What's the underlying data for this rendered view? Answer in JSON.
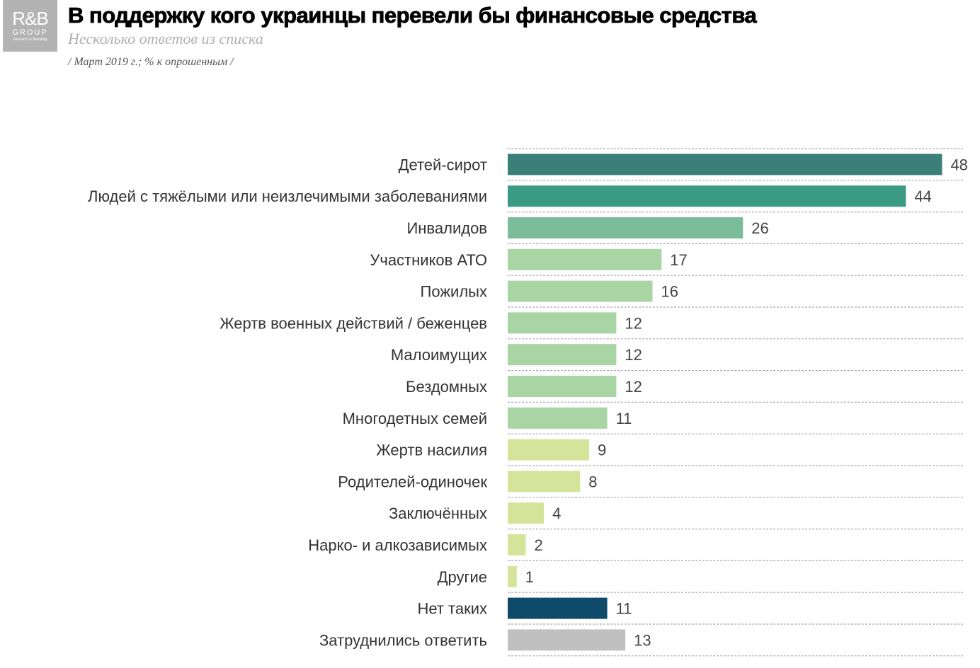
{
  "logo": {
    "line1": "R&B",
    "line2": "GROUP",
    "line3": "Research & Branding"
  },
  "header": {
    "title": "В поддержку кого украинцы перевели бы финансовые средства",
    "subtitle": "Несколько ответов из списка",
    "note": "/ Март 2019 г.; % к опрошенным /"
  },
  "chart_data": {
    "type": "bar",
    "orientation": "horizontal",
    "title": "В поддержку кого украинцы перевели бы финансовые средства",
    "subtitle": "Несколько ответов из списка",
    "unit": "% к опрошенным",
    "xlim": [
      0,
      50
    ],
    "grid": "dashed horizontal separators",
    "categories": [
      "Детей-сирот",
      "Людей с тяжёлыми или неизлечимыми заболеваниями",
      "Инвалидов",
      "Участников АТО",
      "Пожилых",
      "Жертв военных действий / беженцев",
      "Малоимущих",
      "Бездомных",
      "Многодетных семей",
      "Жертв насилия",
      "Родителей-одиночек",
      "Заключённых",
      "Нарко- и алкозависимых",
      "Другие",
      "Нет таких",
      "Затруднились ответить"
    ],
    "values": [
      48,
      44,
      26,
      17,
      16,
      12,
      12,
      12,
      11,
      9,
      8,
      4,
      2,
      1,
      11,
      13
    ],
    "colors": [
      "#3b7f79",
      "#3a9a83",
      "#7bbd99",
      "#a9d5a4",
      "#a9d5a4",
      "#a9d5a4",
      "#a9d5a4",
      "#a9d5a4",
      "#a9d5a4",
      "#d4e59b",
      "#d4e59b",
      "#d4e59b",
      "#d4e59b",
      "#d4e59b",
      "#0f4a6b",
      "#c0c0c0"
    ]
  }
}
